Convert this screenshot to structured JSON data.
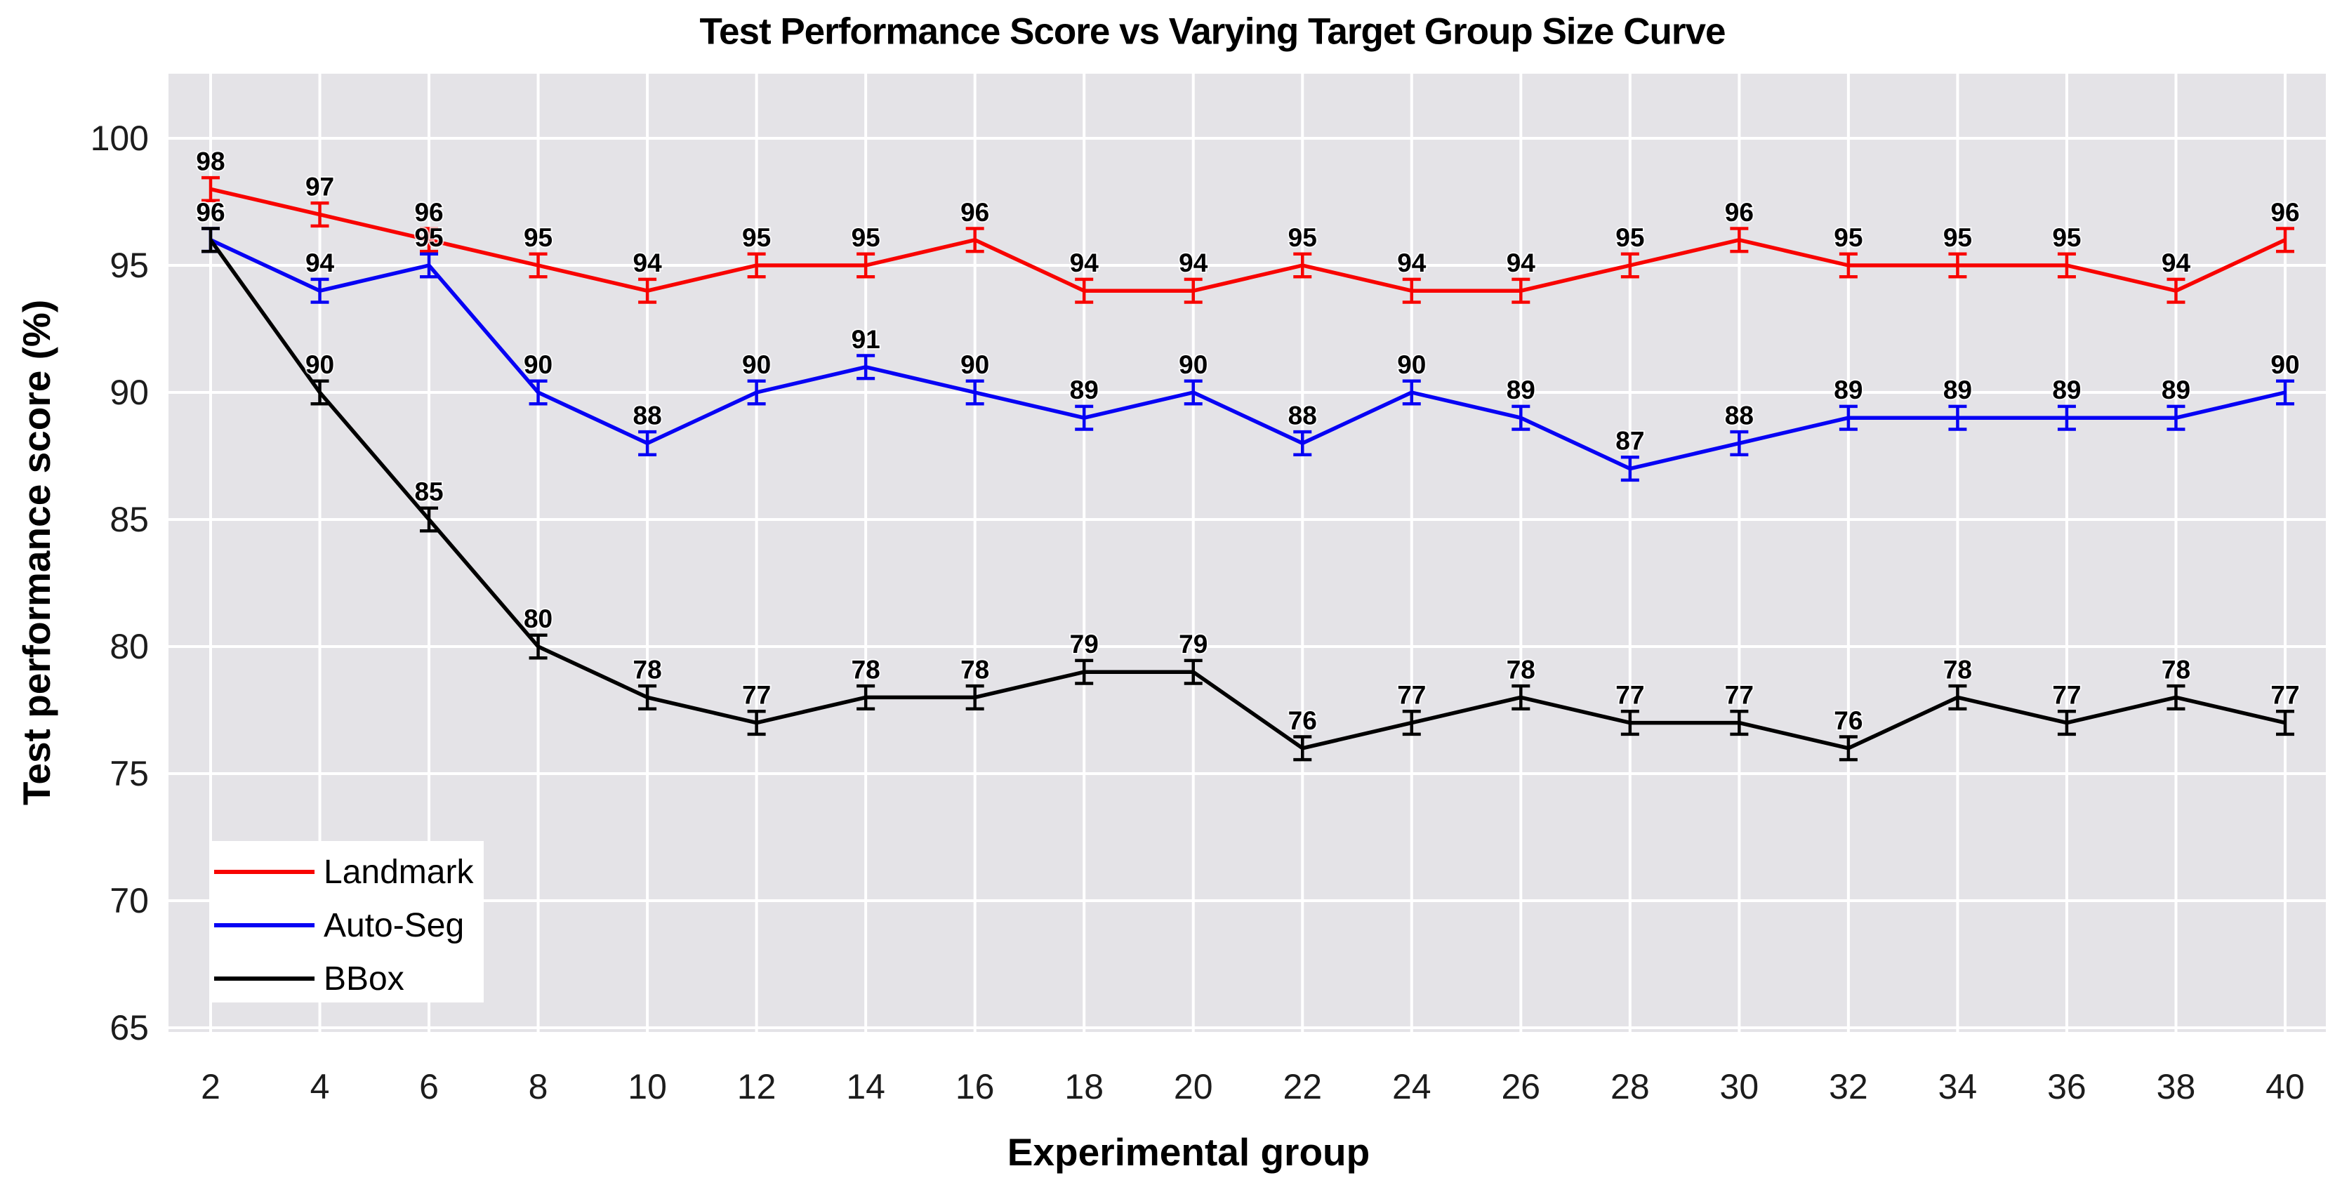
{
  "chart": {
    "title": "Test Performance Score vs Varying Target Group Size Curve",
    "xlabel": "Experimental group",
    "ylabel": "Test performance score (%)"
  },
  "chart_data": {
    "type": "line",
    "title": "Test Performance Score vs Varying Target Group Size Curve",
    "xlabel": "Experimental group",
    "ylabel": "Test performance score (%)",
    "x": [
      2,
      4,
      6,
      8,
      10,
      12,
      14,
      16,
      18,
      20,
      22,
      24,
      26,
      28,
      30,
      32,
      34,
      36,
      38,
      40
    ],
    "xticks": [
      2,
      4,
      6,
      8,
      10,
      12,
      14,
      16,
      18,
      20,
      22,
      24,
      26,
      28,
      30,
      32,
      34,
      36,
      38,
      40
    ],
    "yticks": [
      65,
      70,
      75,
      80,
      85,
      90,
      95,
      100
    ],
    "ylim": [
      64.8,
      102.5
    ],
    "grid": "white major gridlines on gray panel",
    "legend_position": "lower left",
    "error_bar": 0.45,
    "background_color": "#e4e3e7",
    "gridline_color": "#ffffff",
    "series": [
      {
        "name": "Landmark",
        "color": "#f80400",
        "values": [
          98,
          97,
          96,
          95,
          94,
          95,
          95,
          96,
          94,
          94,
          95,
          94,
          94,
          95,
          96,
          95,
          95,
          95,
          94,
          96
        ]
      },
      {
        "name": "Auto-Seg",
        "color": "#0702f4",
        "values": [
          96,
          94,
          95,
          90,
          88,
          90,
          91,
          90,
          89,
          90,
          88,
          90,
          89,
          87,
          88,
          89,
          89,
          89,
          89,
          90
        ]
      },
      {
        "name": "BBox",
        "color": "#000000",
        "values": [
          96,
          90,
          85,
          80,
          78,
          77,
          78,
          78,
          79,
          79,
          76,
          77,
          78,
          77,
          77,
          76,
          78,
          77,
          78,
          77
        ]
      }
    ]
  }
}
